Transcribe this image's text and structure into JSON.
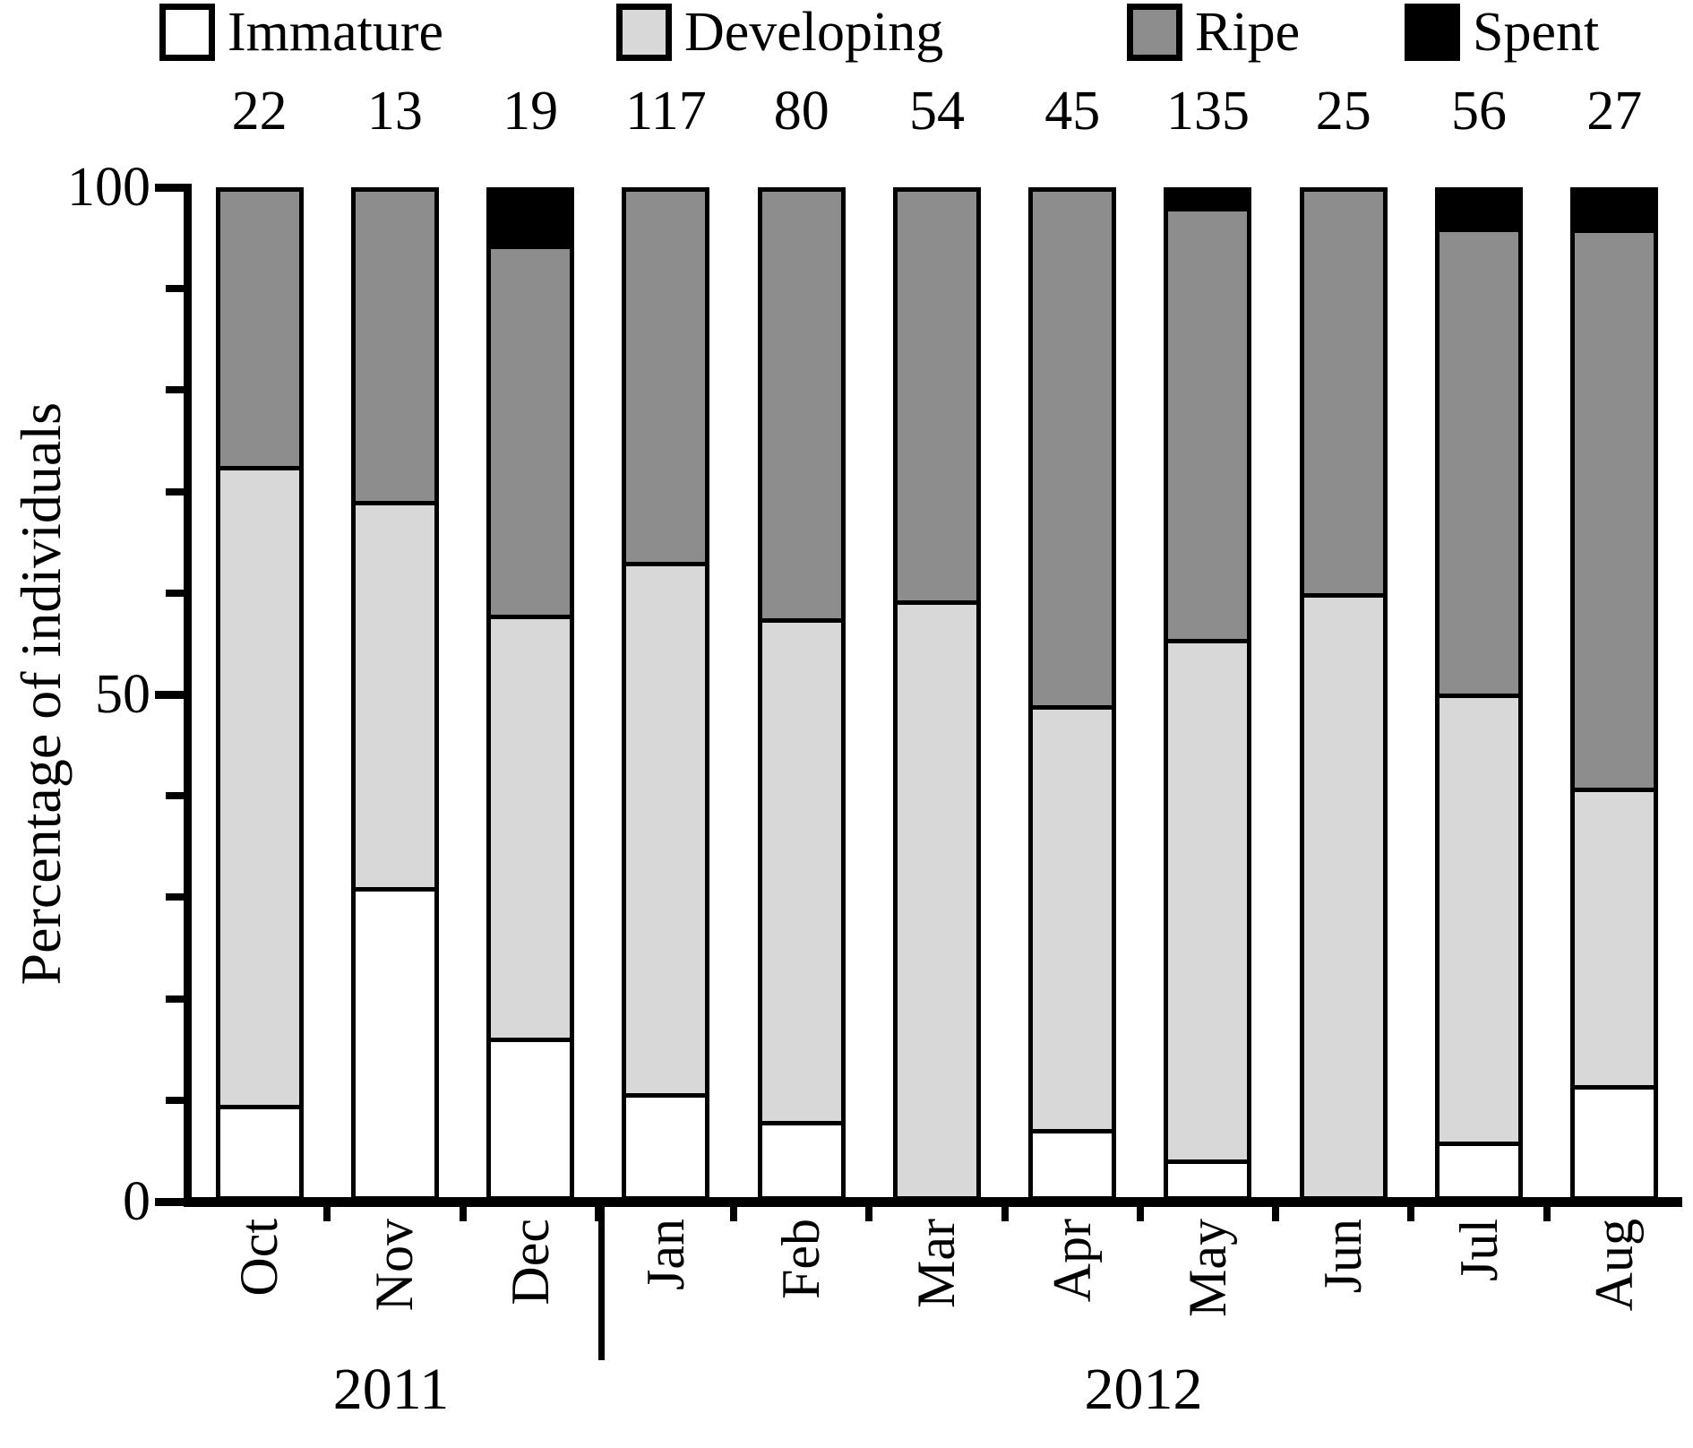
{
  "figure": {
    "ylabel": "Percentage of individuals",
    "legend": [
      {
        "label": "Immature",
        "color": "#ffffff"
      },
      {
        "label": "Developing",
        "color": "#d8d8d8"
      },
      {
        "label": "Ripe",
        "color": "#8d8d8d"
      },
      {
        "label": "Spent",
        "color": "#000000"
      }
    ],
    "years": [
      {
        "label": "2011",
        "months": [
          "Oct",
          "Nov",
          "Dec"
        ]
      },
      {
        "label": "2012",
        "months": [
          "Jan",
          "Feb",
          "Mar",
          "Apr",
          "May",
          "Jun",
          "Jul",
          "Aug"
        ]
      }
    ]
  },
  "chart_data": {
    "type": "bar",
    "stacked": true,
    "orientation": "vertical",
    "title": "",
    "xlabel": "",
    "ylabel": "Percentage of individuals",
    "ylim": [
      0,
      100
    ],
    "yticks_major": [
      0,
      50,
      100
    ],
    "yticks_minor": [
      10,
      20,
      30,
      40,
      60,
      70,
      80,
      90
    ],
    "grid": false,
    "legend_position": "top",
    "categories": [
      "Oct",
      "Nov",
      "Dec",
      "Jan",
      "Feb",
      "Mar",
      "Apr",
      "May",
      "Jun",
      "Jul",
      "Aug"
    ],
    "sample_sizes": [
      22,
      13,
      19,
      117,
      80,
      54,
      45,
      135,
      25,
      56,
      27
    ],
    "series": [
      {
        "name": "Immature",
        "color": "#ffffff",
        "values": [
          9.1,
          30.8,
          15.8,
          10.3,
          7.5,
          0,
          6.7,
          3.7,
          0,
          5.4,
          11.1
        ]
      },
      {
        "name": "Developing",
        "color": "#d8d8d8",
        "values": [
          63.6,
          38.4,
          42.1,
          52.9,
          50.0,
          59.3,
          42.2,
          51.8,
          60.0,
          44.6,
          29.6
        ]
      },
      {
        "name": "Ripe",
        "color": "#8d8d8d",
        "values": [
          27.3,
          30.8,
          36.8,
          36.8,
          42.5,
          40.7,
          51.1,
          43.0,
          40.0,
          46.4,
          55.6
        ]
      },
      {
        "name": "Spent",
        "color": "#000000",
        "values": [
          0,
          0,
          5.3,
          0,
          0,
          0,
          0,
          1.5,
          0,
          3.6,
          3.7
        ]
      }
    ]
  }
}
